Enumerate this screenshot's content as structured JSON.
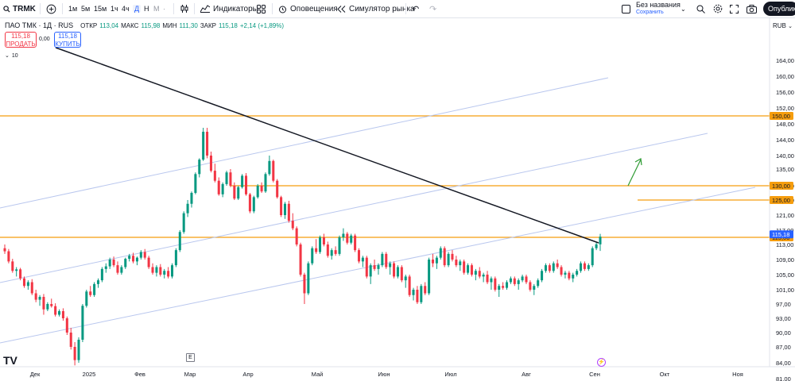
{
  "toolbar": {
    "symbol": "TRMK",
    "intervals": [
      {
        "label": "1м",
        "state": "normal"
      },
      {
        "label": "5м",
        "state": "normal"
      },
      {
        "label": "15м",
        "state": "normal"
      },
      {
        "label": "1ч",
        "state": "normal"
      },
      {
        "label": "4ч",
        "state": "normal"
      },
      {
        "label": "Д",
        "state": "active"
      },
      {
        "label": "Н",
        "state": "normal"
      },
      {
        "label": "М",
        "state": "dim"
      }
    ],
    "indicators_label": "Индикаторы",
    "alerts_label": "Оповещения",
    "replay_label": "Симулятор рынка",
    "layout_name": "Без названия",
    "layout_status": "Сохранить",
    "publish_label": "Опубликовать"
  },
  "legend": {
    "title": "ПАО ТМК · 1Д · RUS",
    "open_label": "ОТКР",
    "open": "113,04",
    "high_label": "МАКС",
    "high": "115,98",
    "low_label": "МИН",
    "low": "111,30",
    "close_label": "ЗАКР",
    "close": "115,18",
    "change": "+2,14 (+1,89%)"
  },
  "trade": {
    "sell_price": "115,18",
    "sell_label": "ПРОДАТЬ",
    "spread": "0,00",
    "buy_price": "115,18",
    "buy_label": "КУПИТЬ",
    "volume": "10"
  },
  "currency": "RUB",
  "marker_e": "E",
  "marker_div": "⚡",
  "logo": "TV",
  "colors": {
    "up": "#089981",
    "down": "#f23645",
    "level": "#f59d0e",
    "channel": "#b9c7ee",
    "trend": "#131722",
    "arrow": "#2e9b33"
  },
  "chart_data": {
    "type": "candlestick",
    "price_ticks": [
      164,
      160,
      156,
      152,
      148,
      144,
      140,
      135,
      130,
      125,
      121,
      117,
      113,
      109,
      105,
      101,
      97,
      93,
      90,
      87,
      84,
      81,
      78
    ],
    "price_tick_labels": [
      "164,00",
      "160,00",
      "156,00",
      "152,00",
      "148,00",
      "144,00",
      "140,00",
      "135,00",
      "130,00",
      "125,00",
      "121,00",
      "117,00",
      "113,00",
      "109,00",
      "105,00",
      "101,00",
      "97,00",
      "93,00",
      "90,00",
      "87,00",
      "84,00",
      "81,00",
      "78,00"
    ],
    "months": [
      "Дек",
      "2025",
      "Фев",
      "Мар",
      "Апр",
      "Май",
      "Июн",
      "Июл",
      "Авг",
      "Сен",
      "Окт",
      "Ноя"
    ],
    "horizontal_levels": [
      {
        "price": 150,
        "label": "150,00"
      },
      {
        "price": 130,
        "label": "130,00"
      },
      {
        "price": 125,
        "label": "125,00"
      },
      {
        "price": 115,
        "label": "115,00"
      }
    ],
    "last_price": {
      "price": 115.18,
      "label": "115,18"
    },
    "candles": [
      [
        112.0,
        113.0,
        110.5,
        111.2
      ],
      [
        111.2,
        111.8,
        108.0,
        108.5
      ],
      [
        108.5,
        109.2,
        105.5,
        106.0
      ],
      [
        106.0,
        107.0,
        104.5,
        106.4
      ],
      [
        106.4,
        106.8,
        103.5,
        104.0
      ],
      [
        104.0,
        104.5,
        101.5,
        102.0
      ],
      [
        102.0,
        103.5,
        101.0,
        103.0
      ],
      [
        103.0,
        103.8,
        99.5,
        100.0
      ],
      [
        100.0,
        101.0,
        97.5,
        98.2
      ],
      [
        98.2,
        99.5,
        96.5,
        99.0
      ],
      [
        99.0,
        99.8,
        94.0,
        95.5
      ],
      [
        95.5,
        97.5,
        95.0,
        97.0
      ],
      [
        97.0,
        98.5,
        96.0,
        96.4
      ],
      [
        96.4,
        97.2,
        93.5,
        94.0
      ],
      [
        94.0,
        95.5,
        93.5,
        95.0
      ],
      [
        95.0,
        95.8,
        92.5,
        93.0
      ],
      [
        93.0,
        93.5,
        89.5,
        90.0
      ],
      [
        90.0,
        91.0,
        86.5,
        87.0
      ],
      [
        87.0,
        88.0,
        83.5,
        84.5
      ],
      [
        84.5,
        89.0,
        84.0,
        88.5
      ],
      [
        88.5,
        97.0,
        88.0,
        96.5
      ],
      [
        96.5,
        101.0,
        96.0,
        100.5
      ],
      [
        100.5,
        102.0,
        99.0,
        99.5
      ],
      [
        99.5,
        103.0,
        99.0,
        102.5
      ],
      [
        102.5,
        104.0,
        101.5,
        103.5
      ],
      [
        103.5,
        107.0,
        103.0,
        106.5
      ],
      [
        106.5,
        108.0,
        105.5,
        107.2
      ],
      [
        107.2,
        109.5,
        106.5,
        109.0
      ],
      [
        109.0,
        109.8,
        107.0,
        107.5
      ],
      [
        107.5,
        108.5,
        105.0,
        105.5
      ],
      [
        105.5,
        107.5,
        105.0,
        107.0
      ],
      [
        107.0,
        109.5,
        106.5,
        109.2
      ],
      [
        109.2,
        110.5,
        108.5,
        110.0
      ],
      [
        110.0,
        110.8,
        108.0,
        108.5
      ],
      [
        108.5,
        109.8,
        107.5,
        109.5
      ],
      [
        109.5,
        111.5,
        109.0,
        111.0
      ],
      [
        111.0,
        111.8,
        109.0,
        109.5
      ],
      [
        109.5,
        110.0,
        106.5,
        107.0
      ],
      [
        107.0,
        108.0,
        105.0,
        105.5
      ],
      [
        105.5,
        107.5,
        104.5,
        107.0
      ],
      [
        107.0,
        107.8,
        104.5,
        105.0
      ],
      [
        105.0,
        106.5,
        104.0,
        106.0
      ],
      [
        106.0,
        107.0,
        104.0,
        104.5
      ],
      [
        104.5,
        108.0,
        104.0,
        107.5
      ],
      [
        107.5,
        112.0,
        107.0,
        111.5
      ],
      [
        111.5,
        117.0,
        111.0,
        116.5
      ],
      [
        116.5,
        122.0,
        116.0,
        121.5
      ],
      [
        121.5,
        125.0,
        120.5,
        124.0
      ],
      [
        124.0,
        128.0,
        123.0,
        127.5
      ],
      [
        127.5,
        134.0,
        127.0,
        133.5
      ],
      [
        133.5,
        139.0,
        132.5,
        138.5
      ],
      [
        138.5,
        147.0,
        138.0,
        146.0
      ],
      [
        146.0,
        147.0,
        139.0,
        140.0
      ],
      [
        140.0,
        141.0,
        134.0,
        134.5
      ],
      [
        134.5,
        137.0,
        131.0,
        131.5
      ],
      [
        131.5,
        132.5,
        126.5,
        127.0
      ],
      [
        127.0,
        131.0,
        126.0,
        130.5
      ],
      [
        130.5,
        134.5,
        130.0,
        134.0
      ],
      [
        134.0,
        135.0,
        129.5,
        130.0
      ],
      [
        130.0,
        131.0,
        125.0,
        125.5
      ],
      [
        125.5,
        130.0,
        125.0,
        129.5
      ],
      [
        129.5,
        133.5,
        129.0,
        133.0
      ],
      [
        133.0,
        133.8,
        126.5,
        127.0
      ],
      [
        127.0,
        127.5,
        121.5,
        122.0
      ],
      [
        122.0,
        126.5,
        121.5,
        126.0
      ],
      [
        126.0,
        130.5,
        125.5,
        130.0
      ],
      [
        130.0,
        131.0,
        127.5,
        128.0
      ],
      [
        128.0,
        134.0,
        127.5,
        133.5
      ],
      [
        133.5,
        140.0,
        133.0,
        138.0
      ],
      [
        138.0,
        138.5,
        131.0,
        131.5
      ],
      [
        131.5,
        132.0,
        125.5,
        126.0
      ],
      [
        126.0,
        126.5,
        120.5,
        121.0
      ],
      [
        121.0,
        124.5,
        120.0,
        124.0
      ],
      [
        124.0,
        124.8,
        119.0,
        119.5
      ],
      [
        119.5,
        121.5,
        117.0,
        117.5
      ],
      [
        117.5,
        118.0,
        112.5,
        113.0
      ],
      [
        113.0,
        113.5,
        104.5,
        105.0
      ],
      [
        105.0,
        105.5,
        97.0,
        100.0
      ],
      [
        100.0,
        108.5,
        99.5,
        108.0
      ],
      [
        108.0,
        112.5,
        107.5,
        112.0
      ],
      [
        112.0,
        114.5,
        110.5,
        111.0
      ],
      [
        111.0,
        115.5,
        110.5,
        115.0
      ],
      [
        115.0,
        116.0,
        112.5,
        113.0
      ],
      [
        113.0,
        113.8,
        109.5,
        110.0
      ],
      [
        110.0,
        112.0,
        109.0,
        111.5
      ],
      [
        111.5,
        112.5,
        110.0,
        110.5
      ],
      [
        110.5,
        115.5,
        110.0,
        115.0
      ],
      [
        115.0,
        117.5,
        114.0,
        116.0
      ],
      [
        116.0,
        116.5,
        113.0,
        113.5
      ],
      [
        113.5,
        116.0,
        113.0,
        115.5
      ],
      [
        115.5,
        116.0,
        111.0,
        111.5
      ],
      [
        111.5,
        112.0,
        108.0,
        108.5
      ],
      [
        108.5,
        110.0,
        107.0,
        109.5
      ],
      [
        109.5,
        110.0,
        104.0,
        104.5
      ],
      [
        104.5,
        108.0,
        102.5,
        107.5
      ],
      [
        107.5,
        109.0,
        106.0,
        106.5
      ],
      [
        106.5,
        108.0,
        105.0,
        107.5
      ],
      [
        107.5,
        111.0,
        107.0,
        110.5
      ],
      [
        110.5,
        111.0,
        106.5,
        107.0
      ],
      [
        107.0,
        108.5,
        105.0,
        108.0
      ],
      [
        108.0,
        108.5,
        104.0,
        104.5
      ],
      [
        104.5,
        107.5,
        104.0,
        107.0
      ],
      [
        107.0,
        107.5,
        103.0,
        103.5
      ],
      [
        103.5,
        105.0,
        101.5,
        104.5
      ],
      [
        104.5,
        105.0,
        99.0,
        99.5
      ],
      [
        99.5,
        101.5,
        98.0,
        101.0
      ],
      [
        101.0,
        102.0,
        97.0,
        97.5
      ],
      [
        97.5,
        102.5,
        97.0,
        102.0
      ],
      [
        102.0,
        103.0,
        99.5,
        100.0
      ],
      [
        100.0,
        109.5,
        99.5,
        109.0
      ],
      [
        109.0,
        110.5,
        107.0,
        108.0
      ],
      [
        108.0,
        110.0,
        106.5,
        109.5
      ],
      [
        109.5,
        112.5,
        109.0,
        112.0
      ],
      [
        112.0,
        112.5,
        107.0,
        107.5
      ],
      [
        107.5,
        111.0,
        107.0,
        110.5
      ],
      [
        110.5,
        111.5,
        108.5,
        109.0
      ],
      [
        109.0,
        110.0,
        107.0,
        107.5
      ],
      [
        107.5,
        109.0,
        106.0,
        108.5
      ],
      [
        108.5,
        109.0,
        105.0,
        105.5
      ],
      [
        105.5,
        108.0,
        105.0,
        107.5
      ],
      [
        107.5,
        108.0,
        104.5,
        105.0
      ],
      [
        105.0,
        106.5,
        103.5,
        106.0
      ],
      [
        106.0,
        107.0,
        104.0,
        104.5
      ],
      [
        104.5,
        105.5,
        103.0,
        105.0
      ],
      [
        105.0,
        106.0,
        102.5,
        103.0
      ],
      [
        103.0,
        104.5,
        101.0,
        104.0
      ],
      [
        104.0,
        104.5,
        100.5,
        101.0
      ],
      [
        101.0,
        102.5,
        99.0,
        102.0
      ],
      [
        102.0,
        103.0,
        101.0,
        101.5
      ],
      [
        101.5,
        103.5,
        101.0,
        103.0
      ],
      [
        103.0,
        104.5,
        102.5,
        104.0
      ],
      [
        104.0,
        104.5,
        102.0,
        102.5
      ],
      [
        102.5,
        104.0,
        101.0,
        103.5
      ],
      [
        103.5,
        105.0,
        103.0,
        104.5
      ],
      [
        104.5,
        105.0,
        102.5,
        103.0
      ],
      [
        103.0,
        103.5,
        100.5,
        101.0
      ],
      [
        101.0,
        102.5,
        99.5,
        102.0
      ],
      [
        102.0,
        104.0,
        101.5,
        103.5
      ],
      [
        103.5,
        106.5,
        103.0,
        106.0
      ],
      [
        106.0,
        108.0,
        105.5,
        107.5
      ],
      [
        107.5,
        108.0,
        105.5,
        106.0
      ],
      [
        106.0,
        108.5,
        105.5,
        108.0
      ],
      [
        108.0,
        109.0,
        106.5,
        107.0
      ],
      [
        107.0,
        107.5,
        104.5,
        105.0
      ],
      [
        105.0,
        106.0,
        104.0,
        105.5
      ],
      [
        105.5,
        106.0,
        103.5,
        104.0
      ],
      [
        104.0,
        105.5,
        103.0,
        105.0
      ],
      [
        105.0,
        106.5,
        104.5,
        106.0
      ],
      [
        106.0,
        108.5,
        105.5,
        108.0
      ],
      [
        108.0,
        108.5,
        106.0,
        106.5
      ],
      [
        106.5,
        108.0,
        106.0,
        107.5
      ],
      [
        107.5,
        112.5,
        107.0,
        112.0
      ],
      [
        112.0,
        113.5,
        111.5,
        113.04
      ],
      [
        113.04,
        115.98,
        111.3,
        115.18
      ]
    ]
  }
}
